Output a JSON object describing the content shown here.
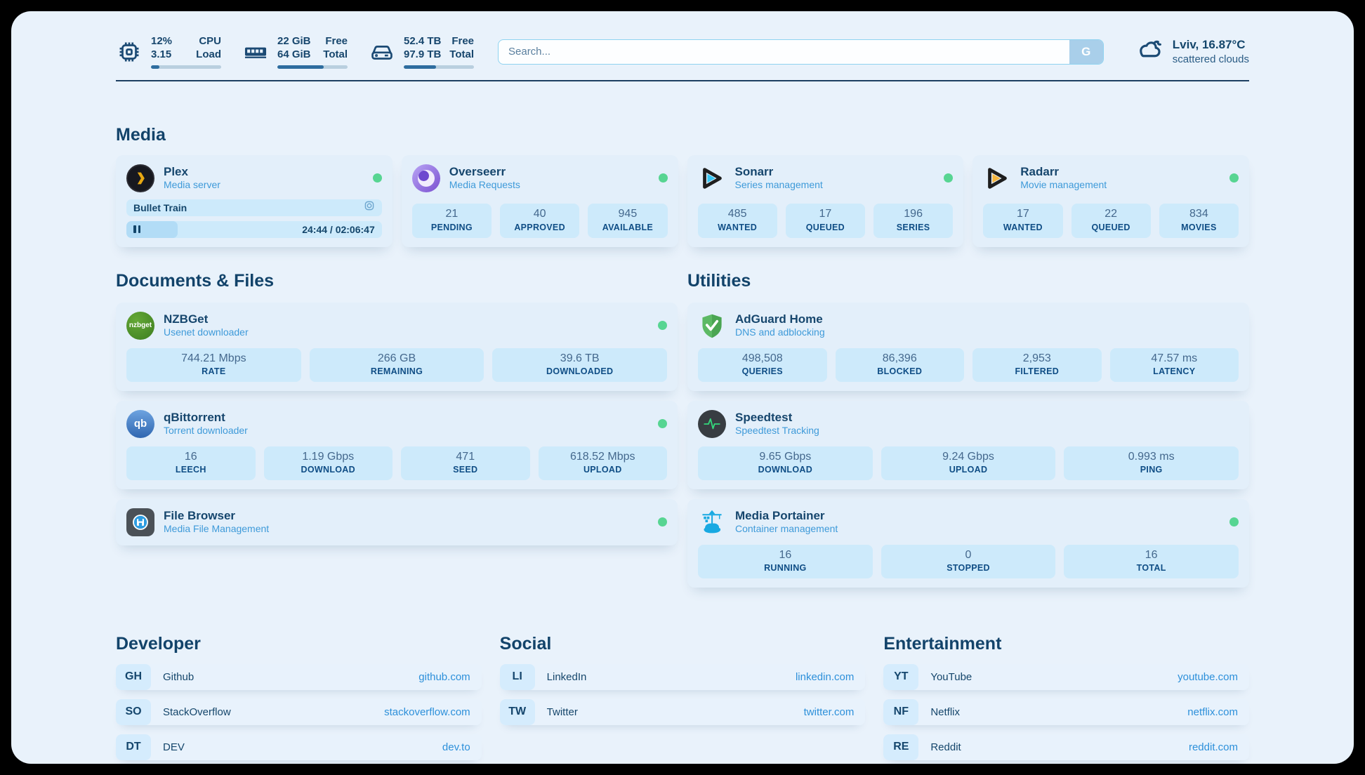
{
  "colors": {
    "page_bg": "#e9f2fb",
    "card_bg": "#e3effa",
    "stat_box_bg": "#cdeafb",
    "navy_text": "#16466d",
    "subtitle_blue": "#3e9ad9",
    "link_blue": "#2d90da",
    "status_online_green": "#57d592",
    "meter_fill": "#2e6d9f"
  },
  "header": {
    "stats": [
      {
        "name": "cpu",
        "values": [
          "12%",
          "3.15"
        ],
        "labels": [
          "CPU",
          "Load"
        ],
        "progress": 12
      },
      {
        "name": "memory",
        "values": [
          "22 GiB",
          "64 GiB"
        ],
        "labels": [
          "Free",
          "Total"
        ],
        "progress": 66
      },
      {
        "name": "storage",
        "values": [
          "52.4 TB",
          "97.9 TB"
        ],
        "labels": [
          "Free",
          "Total"
        ],
        "progress": 46
      }
    ],
    "search": {
      "placeholder": "Search...",
      "button_label": "G"
    },
    "weather": {
      "summary": "Lviv, 16.87°C",
      "condition": "scattered clouds"
    }
  },
  "sections": {
    "media": {
      "title": "Media",
      "cards": [
        {
          "title": "Plex",
          "subtitle": "Media server",
          "status": "online",
          "player": {
            "track": "Bullet Train",
            "time": "24:44 / 02:06:47",
            "progress": 20
          }
        },
        {
          "title": "Overseerr",
          "subtitle": "Media Requests",
          "status": "online",
          "stats": [
            {
              "value": "21",
              "label": "PENDING"
            },
            {
              "value": "40",
              "label": "APPROVED"
            },
            {
              "value": "945",
              "label": "AVAILABLE"
            }
          ]
        },
        {
          "title": "Sonarr",
          "subtitle": "Series management",
          "status": "online",
          "stats": [
            {
              "value": "485",
              "label": "WANTED"
            },
            {
              "value": "17",
              "label": "QUEUED"
            },
            {
              "value": "196",
              "label": "SERIES"
            }
          ]
        },
        {
          "title": "Radarr",
          "subtitle": "Movie management",
          "status": "online",
          "stats": [
            {
              "value": "17",
              "label": "WANTED"
            },
            {
              "value": "22",
              "label": "QUEUED"
            },
            {
              "value": "834",
              "label": "MOVIES"
            }
          ]
        }
      ]
    },
    "documents": {
      "title": "Documents & Files",
      "cards": [
        {
          "title": "NZBGet",
          "subtitle": "Usenet downloader",
          "status": "online",
          "stats": [
            {
              "value": "744.21 Mbps",
              "label": "RATE"
            },
            {
              "value": "266 GB",
              "label": "REMAINING"
            },
            {
              "value": "39.6 TB",
              "label": "DOWNLOADED"
            }
          ]
        },
        {
          "title": "qBittorrent",
          "subtitle": "Torrent downloader",
          "status": "online",
          "stats": [
            {
              "value": "16",
              "label": "LEECH"
            },
            {
              "value": "1.19 Gbps",
              "label": "DOWNLOAD"
            },
            {
              "value": "471",
              "label": "SEED"
            },
            {
              "value": "618.52 Mbps",
              "label": "UPLOAD"
            }
          ]
        },
        {
          "title": "File Browser",
          "subtitle": "Media File Management",
          "status": "online"
        }
      ]
    },
    "utilities": {
      "title": "Utilities",
      "cards": [
        {
          "title": "AdGuard Home",
          "subtitle": "DNS and adblocking",
          "stats": [
            {
              "value": "498,508",
              "label": "QUERIES"
            },
            {
              "value": "86,396",
              "label": "BLOCKED"
            },
            {
              "value": "2,953",
              "label": "FILTERED"
            },
            {
              "value": "47.57 ms",
              "label": "LATENCY"
            }
          ]
        },
        {
          "title": "Speedtest",
          "subtitle": "Speedtest Tracking",
          "stats": [
            {
              "value": "9.65 Gbps",
              "label": "DOWNLOAD"
            },
            {
              "value": "9.24 Gbps",
              "label": "UPLOAD"
            },
            {
              "value": "0.993 ms",
              "label": "PING"
            }
          ]
        },
        {
          "title": "Media Portainer",
          "subtitle": "Container management",
          "status": "online",
          "stats": [
            {
              "value": "16",
              "label": "RUNNING"
            },
            {
              "value": "0",
              "label": "STOPPED"
            },
            {
              "value": "16",
              "label": "TOTAL"
            }
          ]
        }
      ]
    }
  },
  "bookmarks": [
    {
      "title": "Developer",
      "links": [
        {
          "abbr": "GH",
          "name": "Github",
          "url": "github.com"
        },
        {
          "abbr": "SO",
          "name": "StackOverflow",
          "url": "stackoverflow.com"
        },
        {
          "abbr": "DT",
          "name": "DEV",
          "url": "dev.to"
        }
      ]
    },
    {
      "title": "Social",
      "links": [
        {
          "abbr": "LI",
          "name": "LinkedIn",
          "url": "linkedin.com"
        },
        {
          "abbr": "TW",
          "name": "Twitter",
          "url": "twitter.com"
        }
      ]
    },
    {
      "title": "Entertainment",
      "links": [
        {
          "abbr": "YT",
          "name": "YouTube",
          "url": "youtube.com"
        },
        {
          "abbr": "NF",
          "name": "Netflix",
          "url": "netflix.com"
        },
        {
          "abbr": "RE",
          "name": "Reddit",
          "url": "reddit.com"
        }
      ]
    }
  ]
}
